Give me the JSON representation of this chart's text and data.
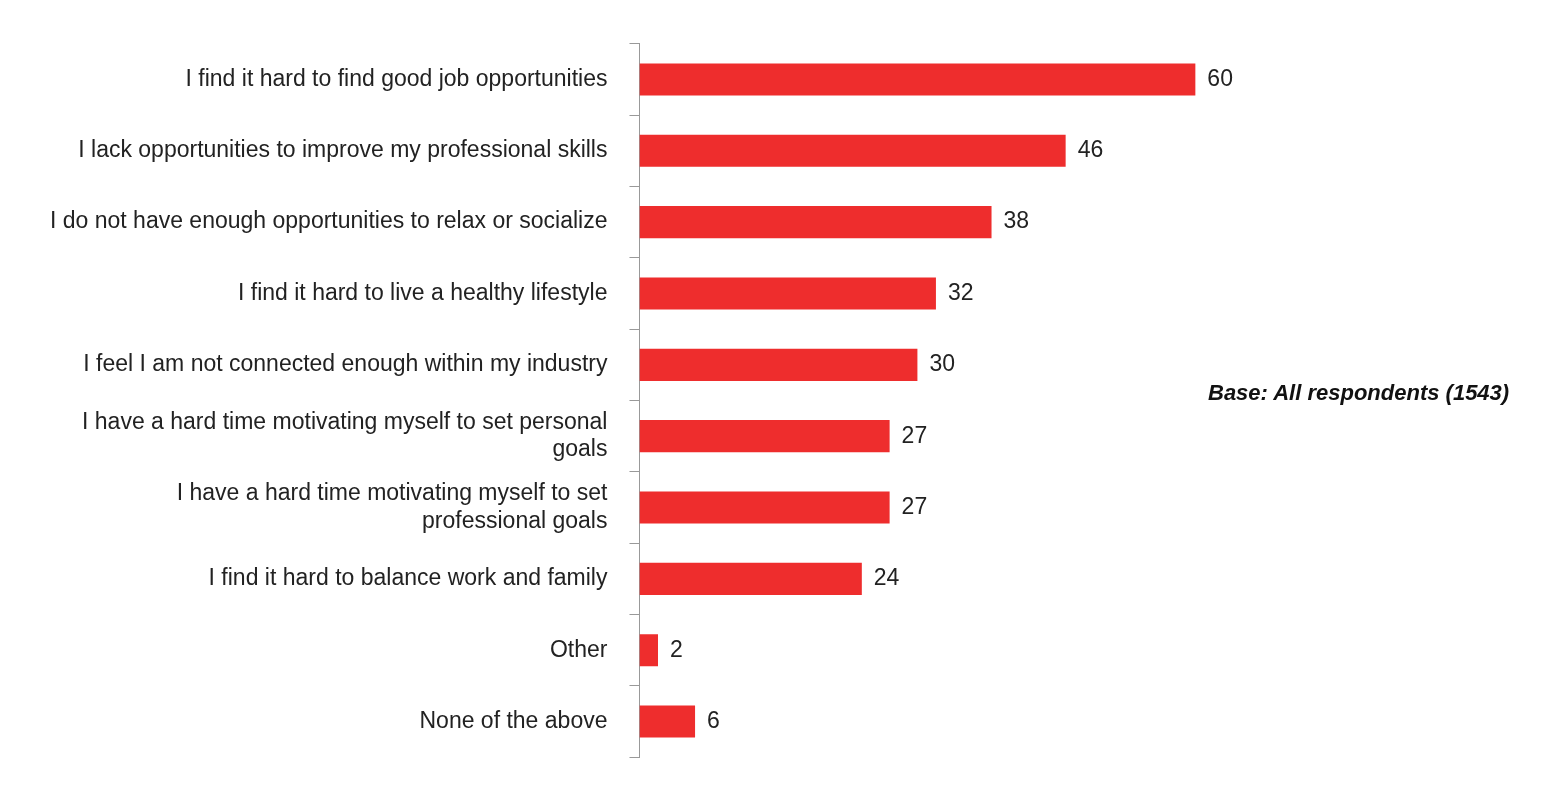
{
  "chart_data": {
    "type": "bar",
    "orientation": "horizontal",
    "categories": [
      "I find it hard to find good job opportunities",
      "I lack opportunities to improve my professional skills",
      "I do not have enough opportunities to relax or socialize",
      "I find it hard to live a healthy lifestyle",
      "I feel I am not connected enough within my industry",
      "I have a hard time motivating myself to set personal goals",
      "I have a hard time motivating myself to set professional goals",
      "I find it hard to balance work and family",
      "Other",
      "None of the above"
    ],
    "values": [
      60,
      46,
      38,
      32,
      30,
      27,
      27,
      24,
      2,
      6
    ],
    "color": "#ee2d2d",
    "data_labels": true,
    "annotations": [
      "Base: All respondents (1543)"
    ]
  }
}
